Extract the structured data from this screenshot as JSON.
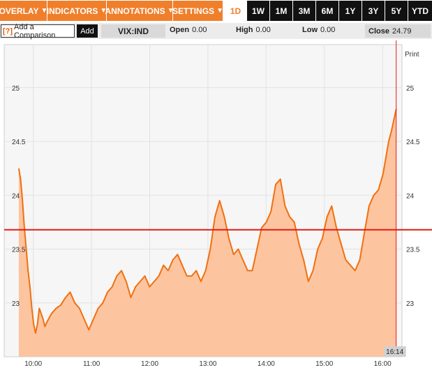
{
  "toolbar": {
    "menus": [
      "OVERLAY",
      "INDICATORS",
      "ANNOTATIONS",
      "SETTINGS"
    ],
    "ranges": [
      "1D",
      "1W",
      "1M",
      "3M",
      "6M",
      "1Y",
      "3Y",
      "5Y",
      "YTD"
    ],
    "active_range": "1D",
    "dropdown_glyph": "▼"
  },
  "compare": {
    "help": "[?]",
    "label": "Add a Comparison",
    "add_label": "Add"
  },
  "quote": {
    "symbol": "VIX:IND",
    "open_label": "Open",
    "open_value": "0.00",
    "high_label": "High",
    "high_value": "0.00",
    "low_label": "Low",
    "low_value": "0.00",
    "close_label": "Close",
    "close_value": "24.79"
  },
  "chart": {
    "print_label": "Print",
    "cursor_time": "16:14",
    "colors": {
      "line": "#f07010",
      "fill": "#fdc4a0",
      "reference": "#e31b12"
    }
  },
  "chart_data": {
    "type": "area",
    "title": "",
    "xlabel": "",
    "ylabel": "",
    "x_ticks": [
      "10:00",
      "11:00",
      "12:00",
      "13:00",
      "14:00",
      "15:00",
      "16:00"
    ],
    "y_ticks": [
      "23",
      "23.5",
      "24",
      "24.5",
      "25"
    ],
    "xlim": [
      "09:30",
      "16:20"
    ],
    "ylim": [
      22.5,
      25.4
    ],
    "grid": true,
    "reference_line": 23.68,
    "series": [
      {
        "x": [
          "09:30",
          "09:32",
          "09:34",
          "09:36",
          "09:38",
          "09:40",
          "09:42",
          "09:44",
          "09:46",
          "09:48",
          "09:50",
          "09:52",
          "09:54",
          "09:56",
          "09:58",
          "10:00",
          "10:05",
          "10:10",
          "10:15",
          "10:20",
          "10:25",
          "10:30",
          "10:35",
          "10:40",
          "10:45",
          "10:50",
          "10:55",
          "11:00",
          "11:05",
          "11:10",
          "11:15",
          "11:20",
          "11:25",
          "11:30",
          "11:35",
          "11:40",
          "11:45",
          "11:50",
          "11:55",
          "12:00",
          "12:05",
          "12:10",
          "12:15",
          "12:20",
          "12:25",
          "12:30",
          "12:35",
          "12:40",
          "12:45",
          "12:50",
          "12:55",
          "13:00",
          "13:05",
          "13:10",
          "13:15",
          "13:20",
          "13:25",
          "13:30",
          "13:35",
          "13:40",
          "13:45",
          "13:50",
          "13:55",
          "14:00",
          "14:05",
          "14:10",
          "14:15",
          "14:20",
          "14:25",
          "14:30",
          "14:35",
          "14:40",
          "14:45",
          "14:50",
          "14:55",
          "15:00",
          "15:05",
          "15:10",
          "15:15",
          "15:20",
          "15:25",
          "15:30",
          "15:35",
          "15:40",
          "15:45",
          "15:50",
          "15:55",
          "16:00",
          "16:03",
          "16:06",
          "16:09",
          "16:12",
          "16:14"
        ],
        "y": [
          24.25,
          24.15,
          23.95,
          23.7,
          23.5,
          23.3,
          23.15,
          22.95,
          22.8,
          22.72,
          22.8,
          22.95,
          22.9,
          22.85,
          22.78,
          22.82,
          22.9,
          22.95,
          22.98,
          23.05,
          23.1,
          23.0,
          22.95,
          22.85,
          22.75,
          22.85,
          22.95,
          23.0,
          23.1,
          23.15,
          23.25,
          23.3,
          23.2,
          23.05,
          23.15,
          23.2,
          23.25,
          23.15,
          23.2,
          23.25,
          23.35,
          23.3,
          23.4,
          23.45,
          23.35,
          23.25,
          23.25,
          23.3,
          23.2,
          23.3,
          23.5,
          23.8,
          23.95,
          23.8,
          23.6,
          23.45,
          23.5,
          23.4,
          23.3,
          23.3,
          23.5,
          23.7,
          23.75,
          23.85,
          24.1,
          24.15,
          23.9,
          23.8,
          23.75,
          23.55,
          23.4,
          23.2,
          23.3,
          23.5,
          23.6,
          23.8,
          23.9,
          23.7,
          23.55,
          23.4,
          23.35,
          23.3,
          23.4,
          23.65,
          23.9,
          24.0,
          24.05,
          24.2,
          24.35,
          24.5,
          24.6,
          24.72,
          24.8
        ]
      }
    ]
  }
}
